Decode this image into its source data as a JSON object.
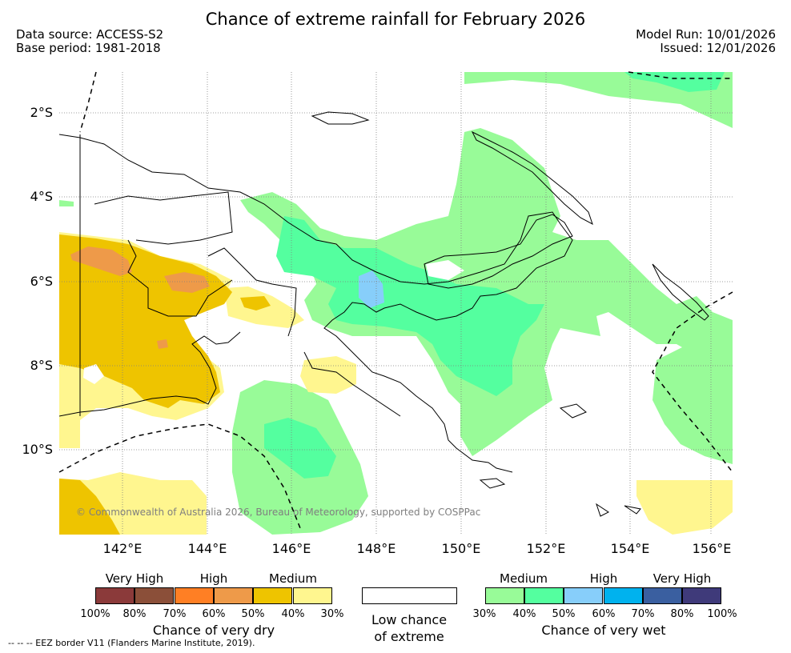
{
  "header": {
    "title": "Chance of extreme rainfall for February 2026",
    "data_source": "Data source: ACCESS-S2",
    "base_period": "Base period: 1981-2018",
    "model_run": "Model Run: 10/01/2026",
    "issued": "Issued: 12/01/2026"
  },
  "map": {
    "latitude_labels": [
      "2°S",
      "4°S",
      "6°S",
      "8°S",
      "10°S"
    ],
    "longitude_labels": [
      "142°E",
      "144°E",
      "146°E",
      "148°E",
      "150°E",
      "152°E",
      "154°E",
      "156°E"
    ],
    "copyright": "© Commonwealth of Australia 2026, Bureau of Meteorology, supported by COSPPac",
    "colors": {
      "dry_30": "#fff68f",
      "dry_40": "#eec400",
      "dry_50": "#ee9a49",
      "dry_60": "#ff7f24",
      "wet_30": "#98fb98",
      "wet_40": "#54ff9f",
      "wet_50": "#87cefa",
      "wet_60": "#00b2ee"
    }
  },
  "legend": {
    "dry": {
      "headers": [
        "Very High",
        "High",
        "Medium"
      ],
      "colors": [
        "#8b3a3a",
        "#8b4f39",
        "#ff7f24",
        "#ee9a49",
        "#eec400",
        "#fff68f"
      ],
      "ticks": [
        "100%",
        "80%",
        "70%",
        "60%",
        "50%",
        "40%",
        "30%"
      ],
      "title": "Chance of very dry"
    },
    "low": {
      "label_line1": "Low chance",
      "label_line2": "of extreme"
    },
    "wet": {
      "headers": [
        "Medium",
        "High",
        "Very High"
      ],
      "colors": [
        "#98fb98",
        "#54ff9f",
        "#87cefa",
        "#00b2ee",
        "#3a5fa0",
        "#3f3a7a"
      ],
      "ticks": [
        "30%",
        "40%",
        "50%",
        "60%",
        "70%",
        "80%",
        "100%"
      ],
      "title": "Chance of very wet"
    }
  },
  "footer": {
    "eez_note": "--  --  -- EEZ border V11 (Flanders Marine Institute, 2019)."
  }
}
